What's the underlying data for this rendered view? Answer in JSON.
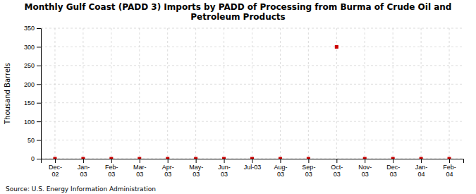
{
  "chart_data": {
    "type": "scatter",
    "title": "Monthly Gulf Coast (PADD 3) Imports by PADD of Processing from Burma of Crude Oil and\nPetroleum Products",
    "ylabel": "Thousand Barrels",
    "annotations": [
      "Source: U.S. Energy Information Administration"
    ],
    "categories": [
      "Dec-\n02",
      "Jan-\n03",
      "Feb-\n03",
      "Mar-\n03",
      "Apr-\n03",
      "May-\n03",
      "Jun-\n03",
      "Jul-03",
      "Aug-\n03",
      "Sep-\n03",
      "Oct-\n03",
      "Nov-\n03",
      "Dec-\n03",
      "Jan-\n04",
      "Feb-\n04"
    ],
    "values": [
      0,
      0,
      0,
      0,
      0,
      0,
      0,
      0,
      0,
      0,
      300,
      0,
      0,
      0,
      0
    ],
    "color": "#cc0000",
    "marker": "square",
    "ylim": [
      0,
      350
    ],
    "yticks": [
      0,
      50,
      100,
      150,
      200,
      250,
      300,
      350
    ],
    "grid": true
  }
}
